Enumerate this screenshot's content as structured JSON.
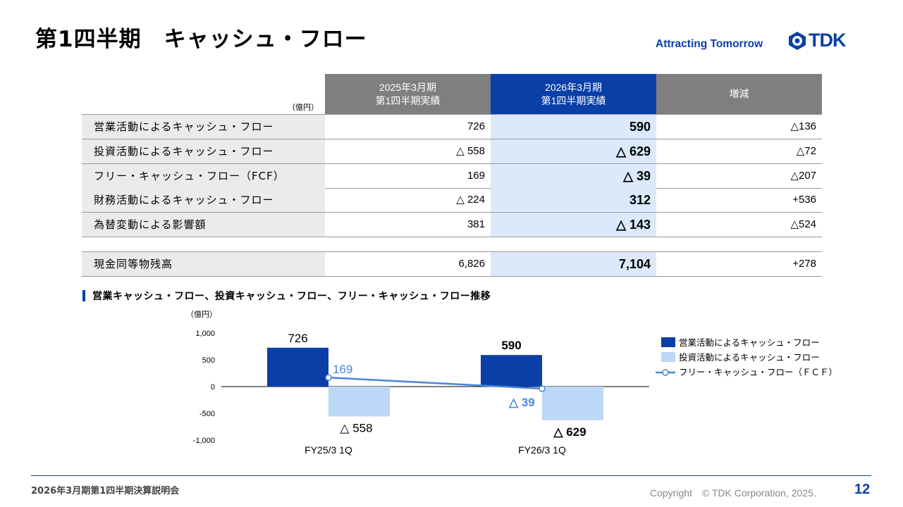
{
  "slide": {
    "title": "第1四半期　キャッシュ・フロー",
    "tagline": "Attracting Tomorrow",
    "logo_text": "TDK",
    "footer_left": "2026年3月期第1四半期決算説明会",
    "copyright": "Copyright　© TDK Corporation, 2025.",
    "page_number": "12"
  },
  "colors": {
    "dark_blue": "#0a3fa8",
    "light_blue": "#bdd7f7",
    "header_gray": "#7f7f7f",
    "line_blue": "#4a86d8"
  },
  "table": {
    "unit": "（億円）",
    "headers": [
      {
        "line1": "2025年3月期",
        "line2": "第1四半期実績"
      },
      {
        "line1": "2026年3月期",
        "line2": "第1四半期実績"
      },
      {
        "line1": "増減",
        "line2": ""
      }
    ],
    "rows": [
      {
        "label": "営業活動によるキャッシュ・フロー",
        "prev": "726",
        "curr": "590",
        "diff": "△136"
      },
      {
        "label": "投資活動によるキャッシュ・フロー",
        "prev": "△ 558",
        "curr": "△ 629",
        "diff": "△72"
      },
      {
        "label": "フリー・キャッシュ・フロー（FCF）",
        "prev": "169",
        "curr": "△ 39",
        "diff": "△207"
      },
      {
        "label": "財務活動によるキャッシュ・フロー",
        "prev": "△ 224",
        "curr": "312",
        "diff": "+536"
      },
      {
        "label": "為替変動による影響額",
        "prev": "381",
        "curr": "△ 143",
        "diff": "△524"
      }
    ],
    "cash_row": {
      "label": "現金同等物残高",
      "prev": "6,826",
      "curr": "7,104",
      "diff": "+278"
    }
  },
  "chart_section_title": "営業キャッシュ・フロー、投資キャッシュ・フロー、フリー・キャッシュ・フロー推移",
  "chart_data": {
    "type": "bar",
    "unit_label": "（億円）",
    "categories": [
      "FY25/3 1Q",
      "FY26/3 1Q"
    ],
    "ylim": [
      -1000,
      1000
    ],
    "yticks": [
      1000,
      500,
      0,
      -500,
      -1000
    ],
    "ytick_labels": [
      "1,000",
      "500",
      "0",
      "-500",
      "-1,000"
    ],
    "series": [
      {
        "name": "営業活動によるキャッシュ・フロー",
        "kind": "bar",
        "values": [
          726,
          590
        ],
        "labels": [
          "726",
          "590"
        ]
      },
      {
        "name": "投資活動によるキャッシュ・フロー",
        "kind": "bar",
        "values": [
          -558,
          -629
        ],
        "labels": [
          "△ 558",
          "△ 629"
        ]
      },
      {
        "name": "フリー・キャッシュ・フロー（ＦＣＦ）",
        "kind": "line",
        "values": [
          169,
          -39
        ],
        "labels": [
          "169",
          "△ 39"
        ]
      }
    ],
    "legend_position": "right"
  }
}
